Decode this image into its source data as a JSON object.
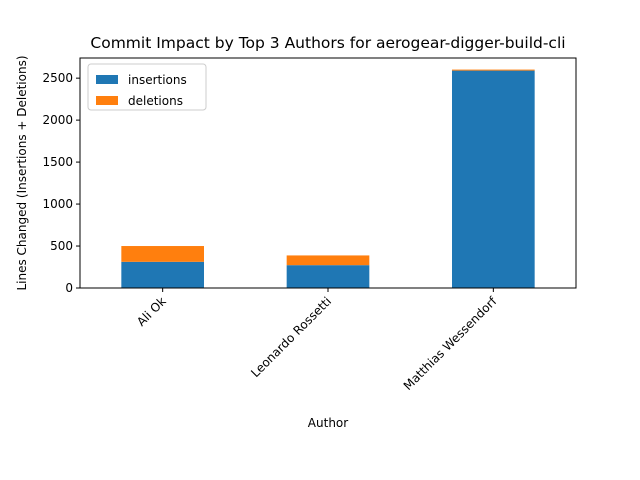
{
  "chart_data": {
    "type": "bar",
    "stacked": true,
    "title": "Commit Impact by Top 3 Authors for aerogear-digger-build-cli",
    "xlabel": "Author",
    "ylabel": "Lines Changed (Insertions + Deletions)",
    "categories": [
      "Ali Ok",
      "Leonardo Rossetti",
      "Matthias Wessendorf"
    ],
    "series": [
      {
        "name": "insertions",
        "color": "#1f77b4",
        "values": [
          312,
          272,
          2590
        ]
      },
      {
        "name": "deletions",
        "color": "#ff7f0e",
        "values": [
          188,
          116,
          12
        ]
      }
    ],
    "ylim": [
      0,
      2740
    ],
    "yticks": [
      0,
      500,
      1000,
      1500,
      2000,
      2500
    ],
    "grid": false,
    "legend_position": "top-left"
  }
}
